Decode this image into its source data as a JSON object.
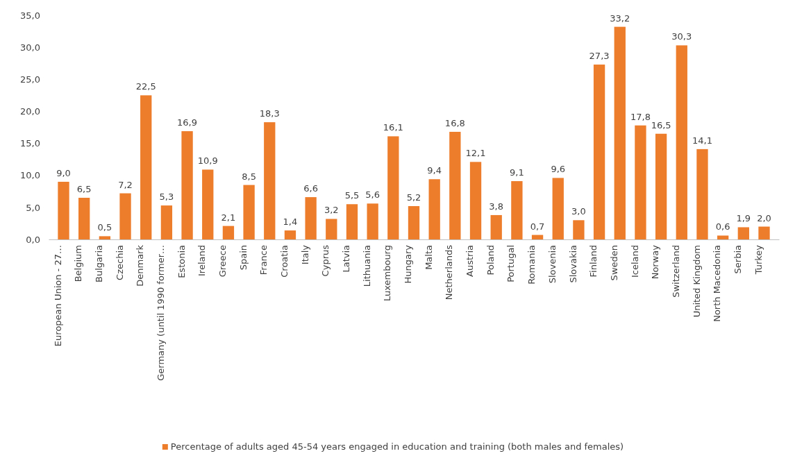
{
  "chart_data": {
    "type": "bar",
    "categories": [
      "European Union - 27…",
      "Belgium",
      "Bulgaria",
      "Czechia",
      "Denmark",
      "Germany (until 1990 former…",
      "Estonia",
      "Ireland",
      "Greece",
      "Spain",
      "France",
      "Croatia",
      "Italy",
      "Cyprus",
      "Latvia",
      "Lithuania",
      "Luxembourg",
      "Hungary",
      "Malta",
      "Netherlands",
      "Austria",
      "Poland",
      "Portugal",
      "Romania",
      "Slovenia",
      "Slovakia",
      "Finland",
      "Sweden",
      "Iceland",
      "Norway",
      "Switzerland",
      "United Kingdom",
      "North Macedonia",
      "Serbia",
      "Turkey"
    ],
    "series": [
      {
        "name": "Percentage of adults aged 45-54 years engaged in education and training (both males and females)",
        "color": "#ee7d2b",
        "values": [
          9.0,
          6.5,
          0.5,
          7.2,
          22.5,
          5.3,
          16.9,
          10.9,
          2.1,
          8.5,
          18.3,
          1.4,
          6.6,
          3.2,
          5.5,
          5.6,
          16.1,
          5.2,
          9.4,
          16.8,
          12.1,
          3.8,
          9.1,
          0.7,
          9.6,
          3.0,
          27.3,
          33.2,
          17.8,
          16.5,
          30.3,
          14.1,
          0.6,
          1.9,
          2.0
        ],
        "value_labels": [
          "9,0",
          "6,5",
          "0,5",
          "7,2",
          "22,5",
          "5,3",
          "16,9",
          "10,9",
          "2,1",
          "8,5",
          "18,3",
          "1,4",
          "6,6",
          "3,2",
          "5,5",
          "5,6",
          "16,1",
          "5,2",
          "9,4",
          "16,8",
          "12,1",
          "3,8",
          "9,1",
          "0,7",
          "9,6",
          "3,0",
          "27,3",
          "33,2",
          "17,8",
          "16,5",
          "30,3",
          "14,1",
          "0,6",
          "1,9",
          "2,0"
        ]
      }
    ],
    "ylim": [
      0,
      35
    ],
    "yticks": [
      {
        "value": 0,
        "label": "0,0"
      },
      {
        "value": 5,
        "label": "5,0"
      },
      {
        "value": 10,
        "label": "10,0"
      },
      {
        "value": 15,
        "label": "15,0"
      },
      {
        "value": 20,
        "label": "20,0"
      },
      {
        "value": 25,
        "label": "25,0"
      },
      {
        "value": 30,
        "label": "30,0"
      },
      {
        "value": 35,
        "label": "35,0"
      }
    ],
    "legend": "bottom"
  }
}
